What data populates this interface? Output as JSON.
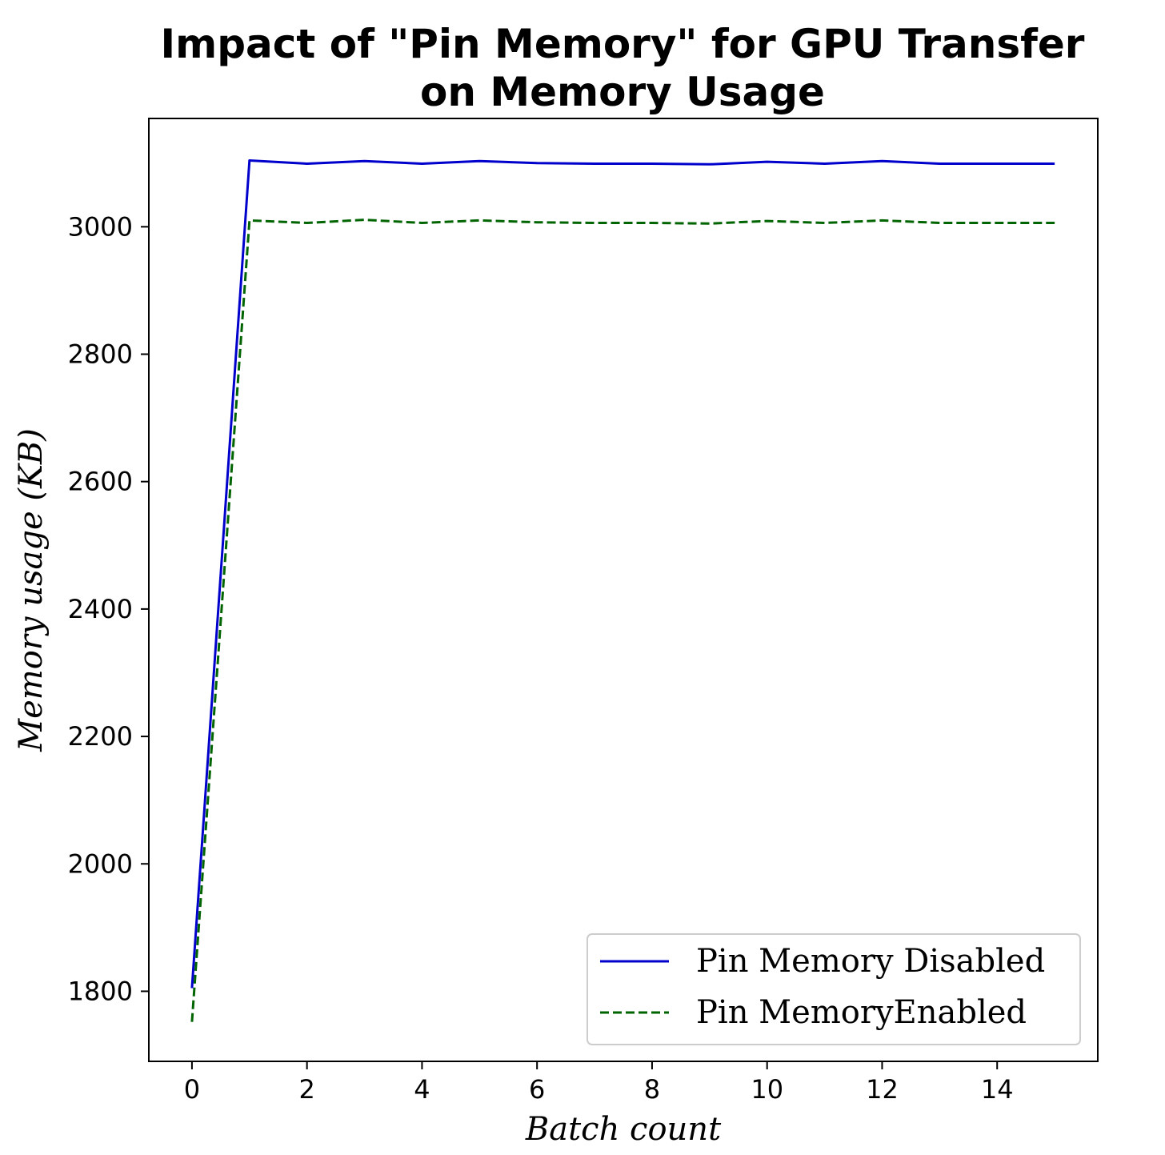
{
  "chart_data": {
    "type": "line",
    "title_lines": [
      "Impact of \"Pin Memory\" for GPU Transfer",
      "on Memory Usage"
    ],
    "xlabel": "Batch count",
    "ylabel": "Memory usage (KB)",
    "xlim": [
      -0.75,
      15.75
    ],
    "ylim": [
      1690,
      3170
    ],
    "x_ticks": [
      0,
      2,
      4,
      6,
      8,
      10,
      12,
      14
    ],
    "y_ticks": [
      1800,
      2000,
      2200,
      2400,
      2600,
      2800,
      3000
    ],
    "grid": false,
    "legend_position": "lower-right",
    "x": [
      0,
      1,
      2,
      3,
      4,
      5,
      6,
      7,
      8,
      9,
      10,
      11,
      12,
      13,
      14,
      15
    ],
    "series": [
      {
        "name": "Pin Memory Disabled",
        "color": "#0000cc",
        "style": "solid",
        "values": [
          1805,
          3104,
          3099,
          3103,
          3099,
          3103,
          3100,
          3099,
          3099,
          3098,
          3102,
          3099,
          3103,
          3099,
          3099,
          3099
        ]
      },
      {
        "name": "Pin MemoryEnabled",
        "color": "#006400",
        "style": "dashed",
        "values": [
          1752,
          3010,
          3006,
          3011,
          3006,
          3010,
          3007,
          3006,
          3006,
          3005,
          3009,
          3006,
          3010,
          3006,
          3006,
          3006
        ]
      }
    ]
  }
}
